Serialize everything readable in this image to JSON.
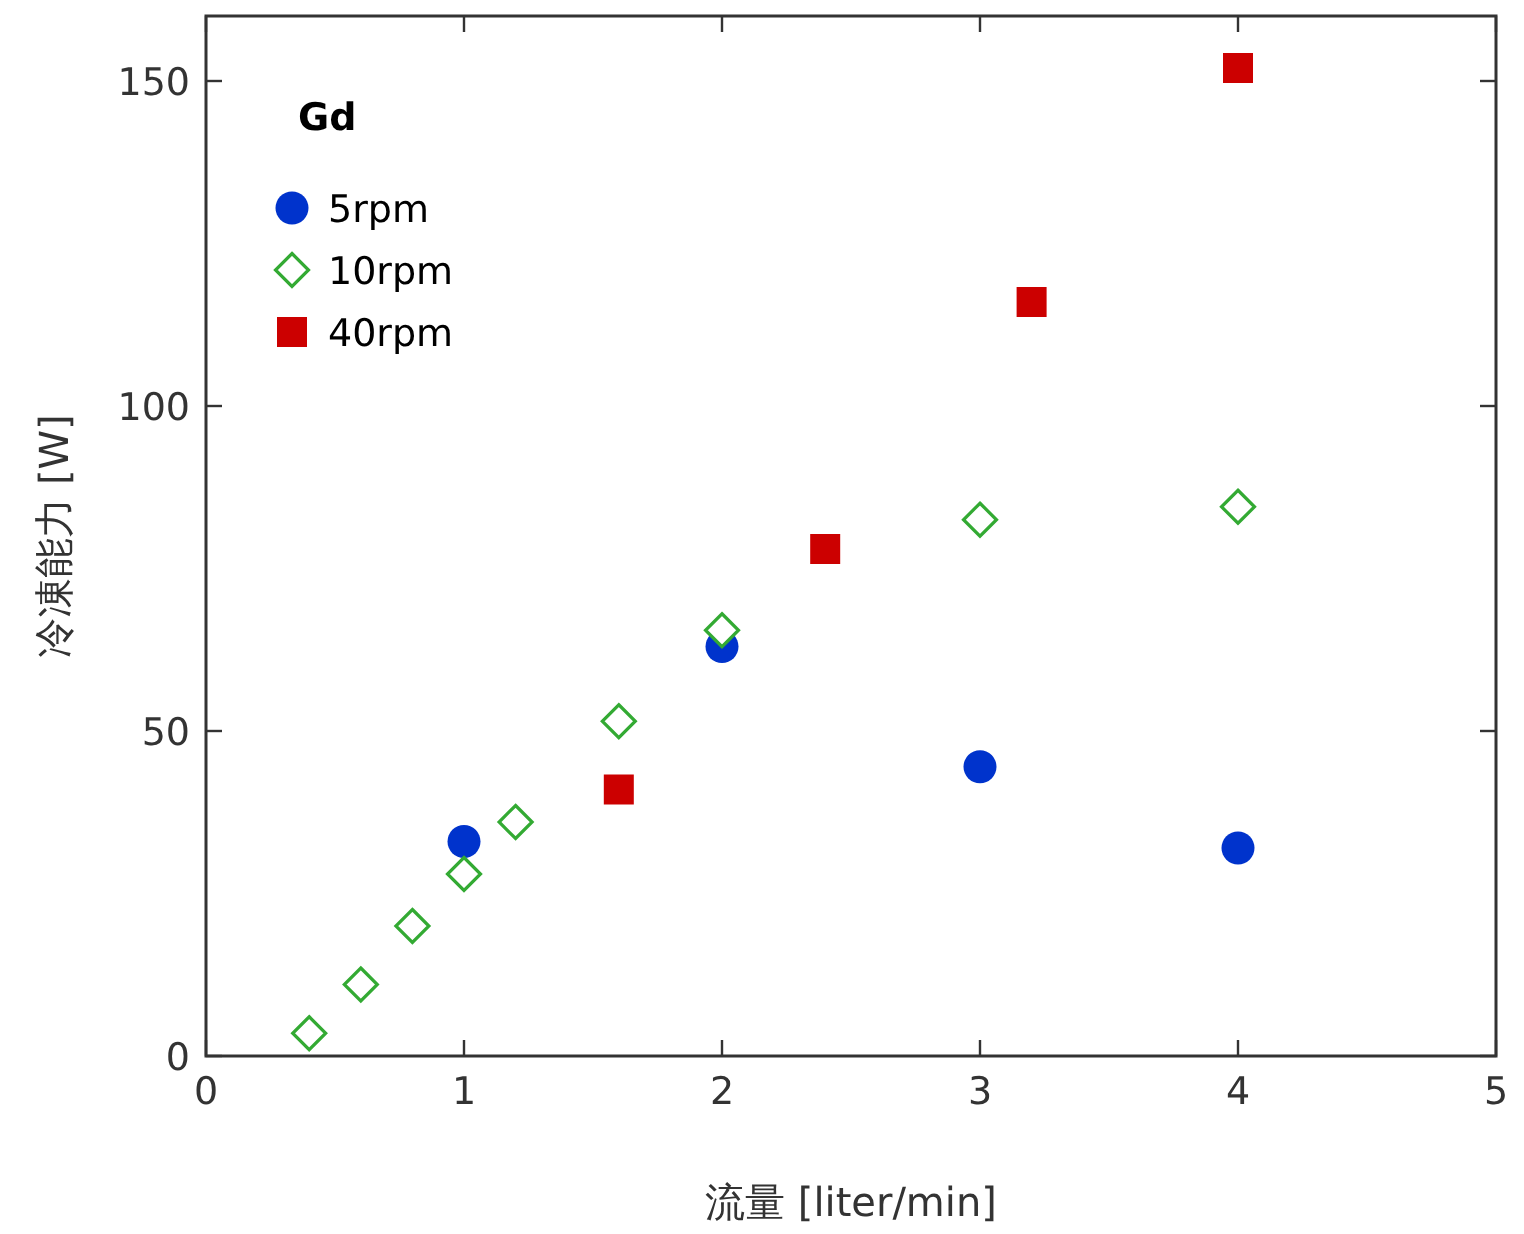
{
  "chart_data": {
    "type": "scatter",
    "xlabel": "流量 [liter/min]",
    "ylabel": "冷凍能力 [W]",
    "legend_title": "Gd",
    "legend": "top left",
    "grid": false,
    "xlim": [
      0,
      5
    ],
    "ylim": [
      0,
      160
    ],
    "xticks": [
      0,
      1,
      2,
      3,
      4,
      5
    ],
    "yticks": [
      0,
      50,
      100,
      150
    ],
    "series": [
      {
        "name": "5rpm",
        "color": "#0033cc",
        "marker": "circle",
        "x": [
          1,
          2,
          3,
          4
        ],
        "values": [
          33,
          63,
          44.5,
          32
        ]
      },
      {
        "name": "10rpm",
        "color": "#33aa33",
        "marker": "diamond",
        "x": [
          0.4,
          0.6,
          0.8,
          1,
          1.2,
          1.6,
          2,
          3,
          4
        ],
        "values": [
          3.5,
          11,
          20,
          28,
          36,
          51.5,
          65.5,
          82.5,
          84.5
        ]
      },
      {
        "name": "40rpm",
        "color": "#cc0000",
        "marker": "square",
        "x": [
          1.6,
          2.4,
          3.2,
          4
        ],
        "values": [
          41,
          78,
          116,
          152
        ]
      }
    ]
  }
}
